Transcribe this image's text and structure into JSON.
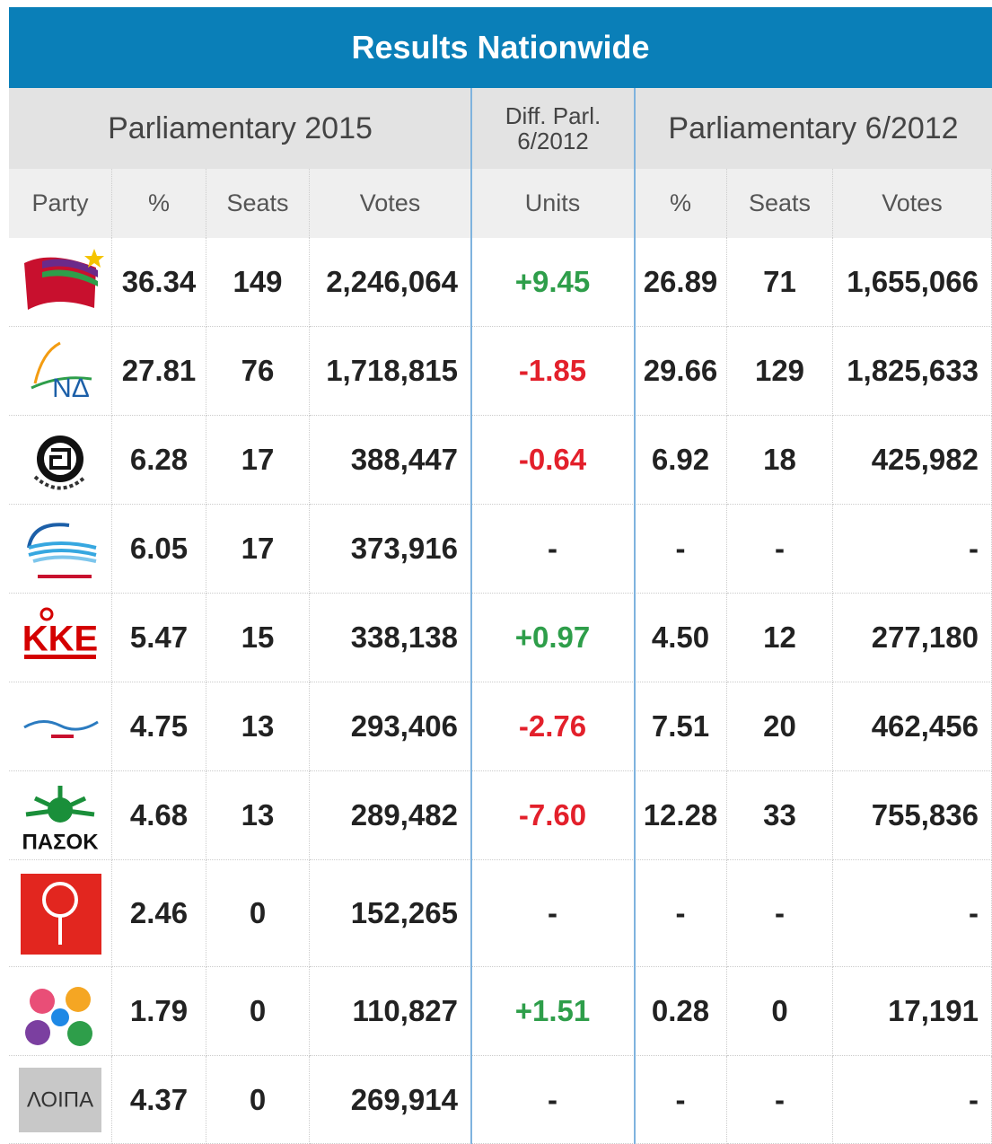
{
  "header": {
    "title": "Results Nationwide"
  },
  "groups": [
    "Parliamentary 2015",
    "Diff. Parl. 6/2012",
    "Parliamentary 6/2012"
  ],
  "columns": [
    "Party",
    "%",
    "Seats",
    "Votes",
    "Units",
    "%",
    "Seats",
    "Votes"
  ],
  "colors": {
    "header": "#0a7fb8",
    "positive": "#2e9e4a",
    "negative": "#e3202b"
  },
  "rows": [
    {
      "cells": [
        "36.34",
        "149",
        "2,246,064",
        "+9.45",
        "26.89",
        "71",
        "1,655,066"
      ]
    },
    {
      "logo": "ΝΔ",
      "cells": [
        "27.81",
        "76",
        "1,718,815",
        "-1.85",
        "29.66",
        "129",
        "1,825,633"
      ]
    },
    {
      "cells": [
        "6.28",
        "17",
        "388,447",
        "-0.64",
        "6.92",
        "18",
        "425,982"
      ]
    },
    {
      "cells": [
        "6.05",
        "17",
        "373,916",
        "-",
        "-",
        "-",
        "-"
      ]
    },
    {
      "logo": "KKE",
      "cells": [
        "5.47",
        "15",
        "338,138",
        "+0.97",
        "4.50",
        "12",
        "277,180"
      ]
    },
    {
      "cells": [
        "4.75",
        "13",
        "293,406",
        "-2.76",
        "7.51",
        "20",
        "462,456"
      ]
    },
    {
      "logo": "ΠΑΣΟΚ",
      "cells": [
        "4.68",
        "13",
        "289,482",
        "-7.60",
        "12.28",
        "33",
        "755,836"
      ]
    },
    {
      "cells": [
        "2.46",
        "0",
        "152,265",
        "-",
        "-",
        "-",
        "-"
      ]
    },
    {
      "cells": [
        "1.79",
        "0",
        "110,827",
        "+1.51",
        "0.28",
        "0",
        "17,191"
      ]
    },
    {
      "logo": "ΛΟΙΠΑ",
      "cells": [
        "4.37",
        "0",
        "269,914",
        "-",
        "-",
        "-",
        "-"
      ]
    }
  ]
}
